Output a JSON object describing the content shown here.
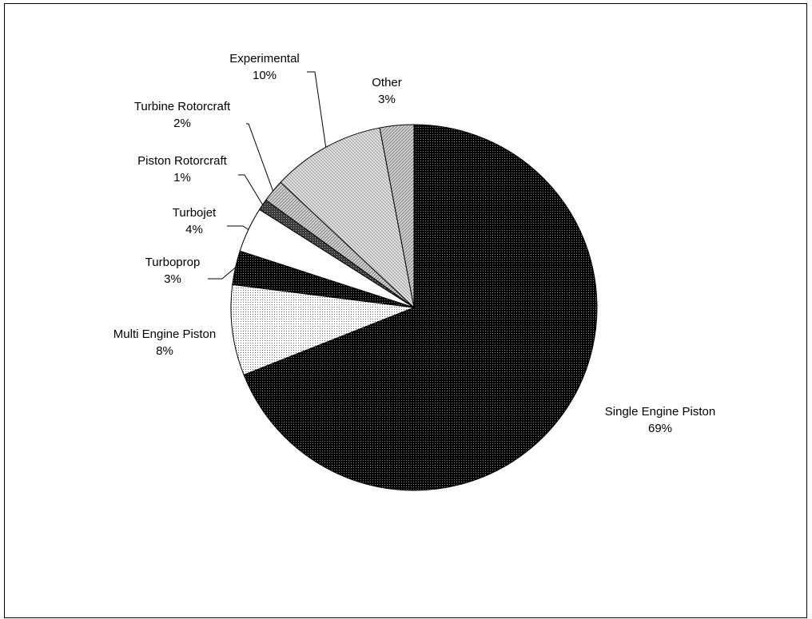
{
  "chart_data": {
    "type": "pie",
    "title": "",
    "start_angle_deg": 0,
    "direction": "clockwise",
    "slices": [
      {
        "label": "Single Engine Piston",
        "value": 69,
        "display": "69%",
        "color": "#1a1a1a",
        "pattern": "dark-dots"
      },
      {
        "label": "Multi Engine Piston",
        "value": 8,
        "display": "8%",
        "color": "#f2f2f2",
        "pattern": "light-dots"
      },
      {
        "label": "Turboprop",
        "value": 3,
        "display": "3%",
        "color": "#1a1a1a",
        "pattern": "dark-dots"
      },
      {
        "label": "Turbojet",
        "value": 4,
        "display": "4%",
        "color": "#ffffff",
        "pattern": "white"
      },
      {
        "label": "Piston Rotorcraft",
        "value": 1,
        "display": "1%",
        "color": "#555555",
        "pattern": "dark-gray"
      },
      {
        "label": "Turbine Rotorcraft",
        "value": 2,
        "display": "2%",
        "color": "#9a9a9a",
        "pattern": "gray-hatch"
      },
      {
        "label": "Experimental",
        "value": 10,
        "display": "10%",
        "color": "#d6d6d6",
        "pattern": "light-hatch"
      },
      {
        "label": "Other",
        "value": 3,
        "display": "3%",
        "color": "#c8c8c8",
        "pattern": "diag-hatch"
      }
    ],
    "legend": "none",
    "label_style": "callouts with leader lines"
  }
}
